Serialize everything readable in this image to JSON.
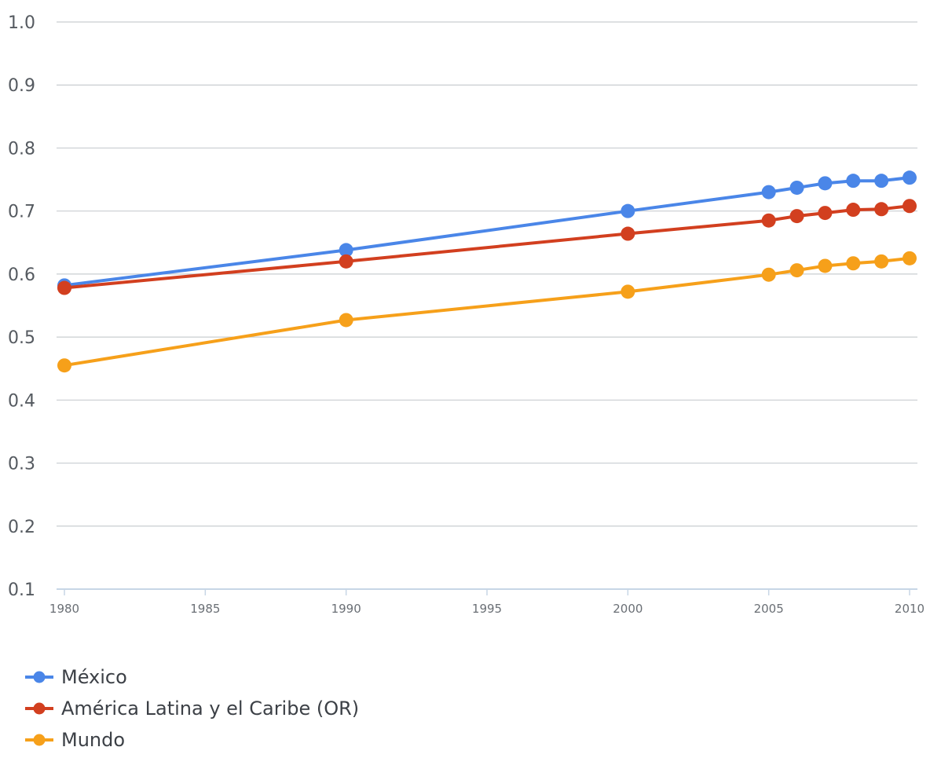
{
  "chart_data": {
    "type": "line",
    "title": "",
    "xlabel": "",
    "ylabel": "",
    "ylim": [
      0.1,
      1.0
    ],
    "xlim": [
      1980,
      2010
    ],
    "yticks": [
      "1.0",
      "0.9",
      "0.8",
      "0.7",
      "0.6",
      "0.5",
      "0.4",
      "0.3",
      "0.2",
      "0.1"
    ],
    "xticks": [
      "1980",
      "1985",
      "1990",
      "1995",
      "2000",
      "2005",
      "2010"
    ],
    "grid": true,
    "legend_position": "bottom-left",
    "x": [
      1980,
      1990,
      2000,
      2005,
      2006,
      2007,
      2008,
      2009,
      2010
    ],
    "series": [
      {
        "name": "México",
        "color": "#4a86e8",
        "values": [
          0.582,
          0.638,
          0.7,
          0.73,
          0.737,
          0.744,
          0.748,
          0.748,
          0.753
        ]
      },
      {
        "name": "América Latina y el Caribe (OR)",
        "color": "#d23f1f",
        "values": [
          0.578,
          0.62,
          0.664,
          0.685,
          0.692,
          0.697,
          0.702,
          0.703,
          0.708
        ]
      },
      {
        "name": "Mundo",
        "color": "#f6a01a",
        "values": [
          0.455,
          0.527,
          0.572,
          0.599,
          0.606,
          0.613,
          0.617,
          0.62,
          0.625
        ]
      }
    ]
  }
}
